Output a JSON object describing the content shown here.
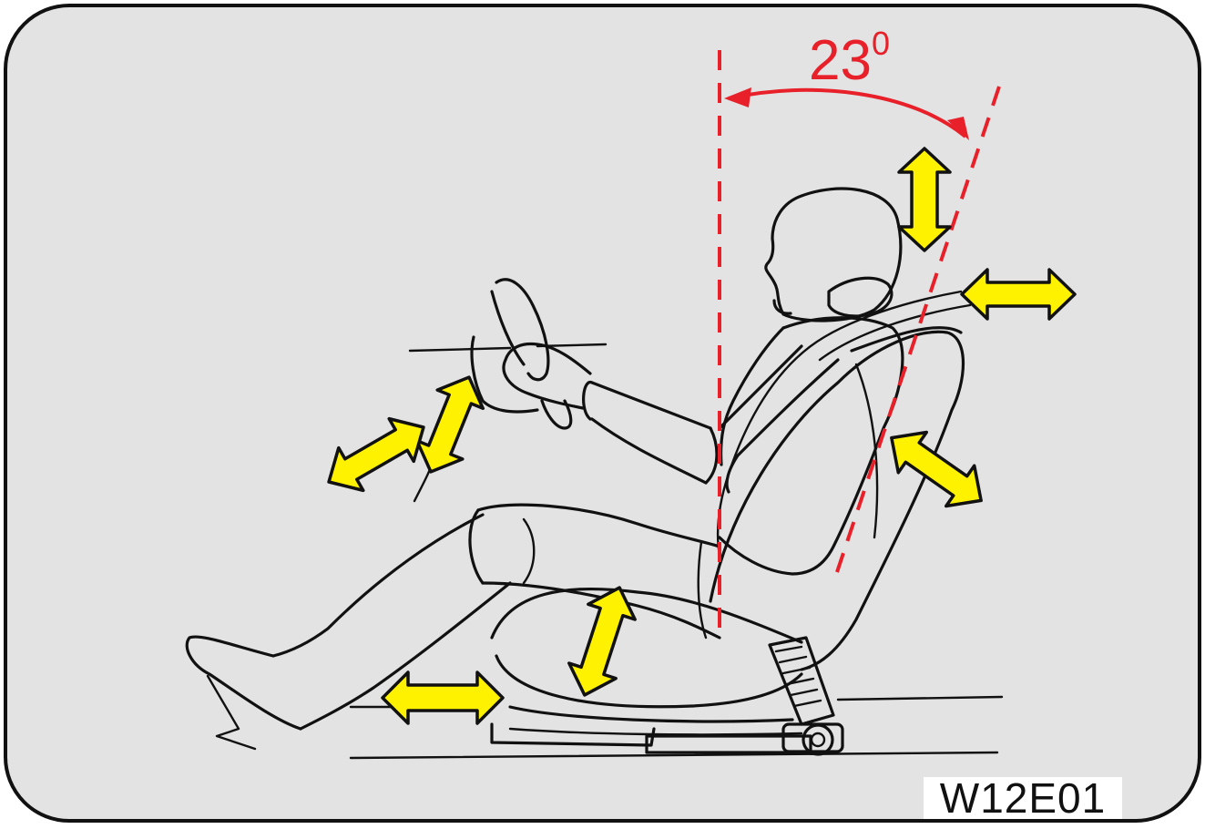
{
  "figure": {
    "angle_value": "23",
    "angle_unit": "0",
    "code": "W12E01"
  },
  "colors": {
    "panel_bg": "#e3e3e3",
    "reference_lines": "#e8202a",
    "adjust_arrows": "#fff200",
    "outline": "#111111"
  },
  "icons": [
    "driver-figure-icon",
    "seat-icon",
    "steering-wheel-icon",
    "adjust-arrow-icon"
  ]
}
